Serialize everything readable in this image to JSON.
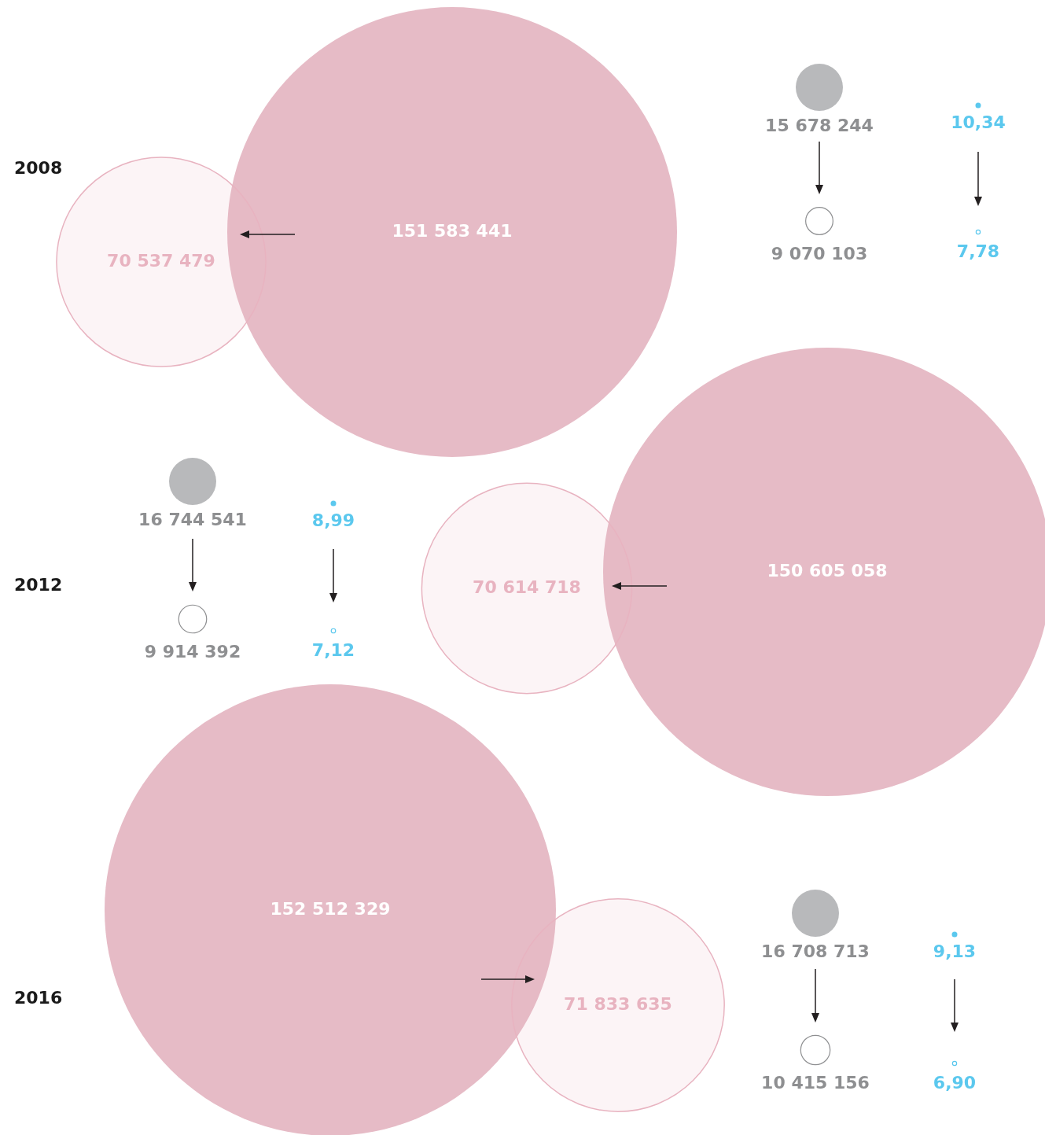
{
  "chart_data": {
    "type": "other",
    "categories": [
      "2008",
      "2012",
      "2016"
    ],
    "series": [
      {
        "color": "#e6bbc6",
        "values": [
          151583441,
          150605058,
          152512329
        ],
        "value_labels": [
          "151 583 441",
          "150 605 058",
          "152 512 329"
        ]
      },
      {
        "color": "#e8b3c0",
        "values": [
          70537479,
          70614718,
          71833635
        ],
        "value_labels": [
          "70 537 479",
          "70 614 718",
          "71 833 635"
        ]
      },
      {
        "color": "#b8b9bb",
        "values": [
          15678244,
          16744541,
          16708713
        ],
        "value_labels": [
          "15 678 244",
          "16 744 541",
          "16 708 713"
        ]
      },
      {
        "color": "#8e8f91",
        "values": [
          9070103,
          9914392,
          10415156
        ],
        "value_labels": [
          "9 070 103",
          "9 914 392",
          "10 415 156"
        ]
      },
      {
        "color": "#5bc8ee",
        "values": [
          10.34,
          8.99,
          9.13
        ],
        "value_labels": [
          "10,34",
          "8,99",
          "9,13"
        ]
      },
      {
        "color": "#5bc8ee",
        "values": [
          7.78,
          7.12,
          6.9
        ],
        "value_labels": [
          "7,78",
          "7,12",
          "6,90"
        ]
      }
    ]
  }
}
